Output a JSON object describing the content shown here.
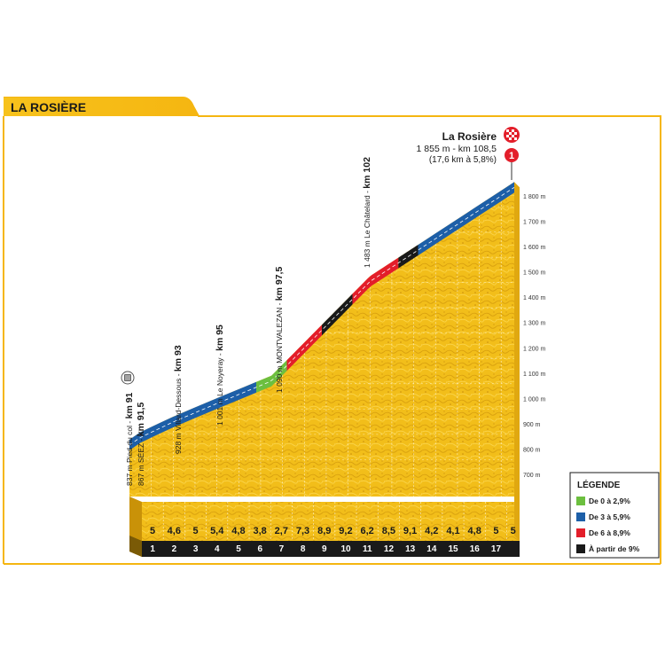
{
  "header": {
    "title": "LA ROSIÈRE"
  },
  "summit": {
    "name": "La Rosière",
    "alt_km": "1 855 m - km 108,5",
    "climb": "(17,6 km à 5,8%)"
  },
  "waypoints": [
    {
      "alt": "837 m Pied du col - ",
      "km": "km 91"
    },
    {
      "alt": "867 m SÉEZ - ",
      "km": "km 91,5"
    },
    {
      "alt": "928 m Villard-Dessous - ",
      "km": "km 93"
    },
    {
      "alt": "1 001 m Le Noyeray - ",
      "km": "km 95"
    },
    {
      "alt": "1 090 m MONTVALEZAN - ",
      "km": "km 97,5"
    },
    {
      "alt": "1 483 m Le Châtelard - ",
      "km": "km 102"
    }
  ],
  "legend": {
    "title": "LÉGENDE",
    "items": [
      {
        "label": "De 0 à 2,9%",
        "color": "#6cbf3f"
      },
      {
        "label": "De 3 à 5,9%",
        "color": "#1d5fa8"
      },
      {
        "label": "De 6 à 8,9%",
        "color": "#e31e2a"
      },
      {
        "label": "À partir de 9%",
        "color": "#1a1a1a"
      }
    ]
  },
  "chart_data": {
    "type": "area",
    "title": "LA ROSIÈRE",
    "x_label": "km",
    "y_label": "m",
    "y_ticks": [
      "700 m",
      "800 m",
      "900 m",
      "1 000 m",
      "1 100 m",
      "1 200 m",
      "1 300 m",
      "1 400 m",
      "1 500 m",
      "1 600 m",
      "1 700 m",
      "1 800 m"
    ],
    "ylim": [
      700,
      1855
    ],
    "km_labels": [
      "1",
      "2",
      "3",
      "4",
      "5",
      "6",
      "7",
      "8",
      "9",
      "10",
      "11",
      "12",
      "13",
      "14",
      "15",
      "16",
      "17"
    ],
    "gradients": [
      "5",
      "4,6",
      "5",
      "5,4",
      "4,8",
      "3,8",
      "2,7",
      "7,3",
      "8,9",
      "9,2",
      "6,2",
      "8,5",
      "9,1",
      "4,2",
      "4,1",
      "4,8",
      "5",
      "5"
    ],
    "profile": [
      {
        "km": 0,
        "alt": 837
      },
      {
        "km": 0.5,
        "alt": 867
      },
      {
        "km": 2,
        "alt": 928
      },
      {
        "km": 4,
        "alt": 1001
      },
      {
        "km": 6.5,
        "alt": 1090
      },
      {
        "km": 11,
        "alt": 1483
      },
      {
        "km": 17.6,
        "alt": 1855
      }
    ],
    "color_segments": [
      {
        "from_km": 0,
        "to_km": 5.8,
        "color": "#1d5fa8"
      },
      {
        "from_km": 5.8,
        "to_km": 7.2,
        "color": "#6cbf3f"
      },
      {
        "from_km": 7.2,
        "to_km": 8.8,
        "color": "#e31e2a"
      },
      {
        "from_km": 8.8,
        "to_km": 10.2,
        "color": "#1a1a1a"
      },
      {
        "from_km": 10.2,
        "to_km": 12.3,
        "color": "#e31e2a"
      },
      {
        "from_km": 12.3,
        "to_km": 13.2,
        "color": "#1a1a1a"
      },
      {
        "from_km": 13.2,
        "to_km": 17.6,
        "color": "#1d5fa8"
      }
    ],
    "legend_position": "bottom-right"
  }
}
